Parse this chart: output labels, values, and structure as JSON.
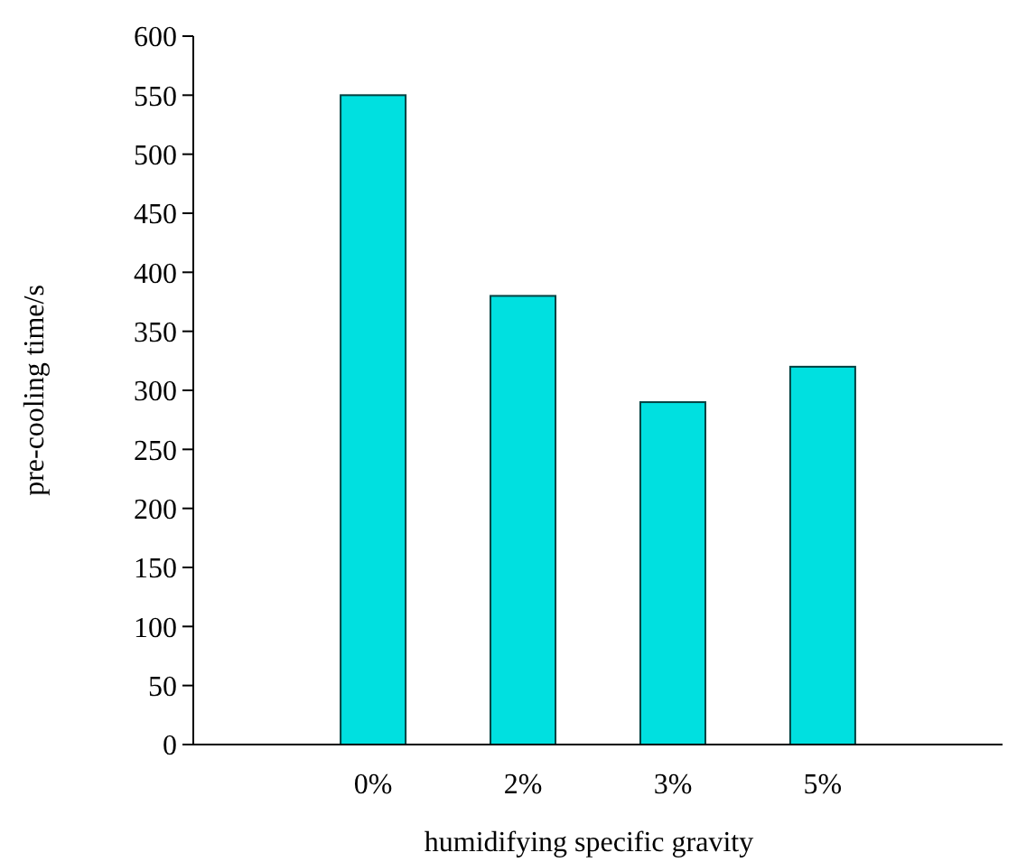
{
  "chart_data": {
    "type": "bar",
    "xlabel": "humidifying specific gravity",
    "ylabel": "pre-cooling time/s",
    "categories": [
      "0%",
      "2%",
      "3%",
      "5%"
    ],
    "values": [
      550,
      380,
      290,
      320
    ],
    "color": "#00e0e0",
    "ylim": [
      0,
      600
    ],
    "yticks": [
      0,
      50,
      100,
      150,
      200,
      250,
      300,
      350,
      400,
      450,
      500,
      550,
      600
    ],
    "grid": false
  }
}
